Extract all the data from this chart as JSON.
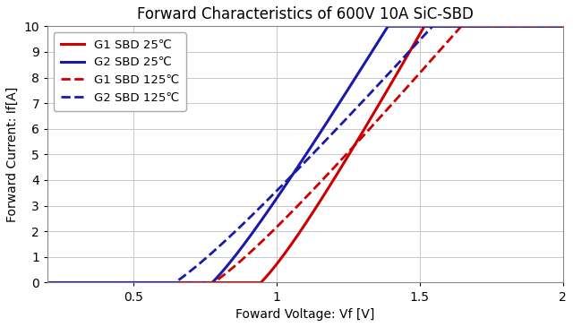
{
  "title": "Forward Characteristics of 600V 10A SiC-SBD",
  "xlabel": "Foward Voltage: Vf [V]",
  "ylabel": "Forward Current: If[A]",
  "xlim": [
    0.2,
    2.0
  ],
  "ylim": [
    0,
    10
  ],
  "yticks": [
    0,
    1,
    2,
    3,
    4,
    5,
    6,
    7,
    8,
    9,
    10
  ],
  "curves": [
    {
      "label": "G1 SBD 25℃",
      "color": "#cc0000",
      "linestyle": "solid",
      "linewidth": 2.2,
      "Vth": 0.945,
      "Ron": 0.048,
      "n_exp": 0.038
    },
    {
      "label": "G2 SBD 25℃",
      "color": "#1a1aaa",
      "linestyle": "solid",
      "linewidth": 2.2,
      "Vth": 0.775,
      "Ron": 0.053,
      "n_exp": 0.035
    },
    {
      "label": "G1 SBD 125℃",
      "color": "#cc0000",
      "linestyle": "dashed",
      "linewidth": 2.0,
      "Vth": 0.78,
      "Ron": 0.074,
      "n_exp": 0.052
    },
    {
      "label": "G2 SBD 125℃",
      "color": "#1a1aaa",
      "linestyle": "dashed",
      "linewidth": 2.0,
      "Vth": 0.645,
      "Ron": 0.078,
      "n_exp": 0.05
    }
  ],
  "legend_loc": "upper left",
  "grid_color": "#c8c8c8",
  "bg_color": "#ffffff",
  "title_fontsize": 12,
  "label_fontsize": 10,
  "tick_fontsize": 10,
  "legend_fontsize": 9.5
}
